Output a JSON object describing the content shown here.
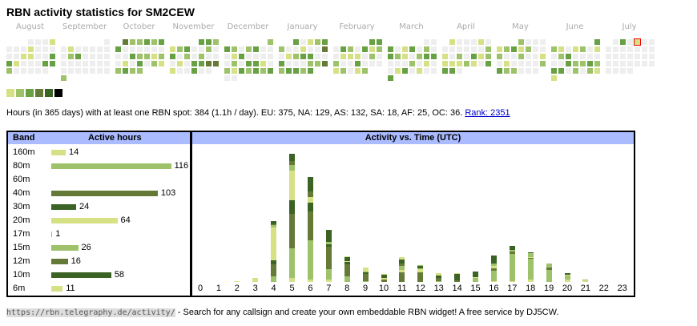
{
  "title": "RBN activity statistics for SM2CEW",
  "palette": {
    "0": "#eeeeee",
    "1": "#d6e085",
    "2": "#9dc26a",
    "3": "#68a044",
    "4": "#667a38",
    "5": "#3a6324",
    "6": "#000000",
    "T": "#d6e085"
  },
  "calendar": [
    {
      "month": "August",
      "rows": [
        "...0001",
        "0001000",
        "0011003",
        "3100033",
        "200000."
      ]
    },
    {
      "month": "September",
      "rows": [
        "......0",
        "0100000",
        "0230000",
        "0000000",
        "0000000",
        "2......"
      ]
    },
    {
      "month": "October",
      "rows": [
        ".422323",
        "3000000",
        "0032212",
        "0103021",
        "2322..."
      ]
    },
    {
      "month": "November",
      "rows": [
        "....332",
        "1230020",
        "3020200",
        "0103344",
        "100300."
      ]
    },
    {
      "month": "December",
      "rows": [
        "......2",
        "3202300",
        "0130000",
        "0203310",
        "2132323",
        "00....."
      ]
    },
    {
      "month": "January",
      "rows": [
        "..30123",
        "2001004",
        "0123300",
        "3000224",
        "23323.."
      ]
    },
    {
      "month": "February",
      "rows": [
        ".....33",
        "0320312",
        "0111020",
        "2003000",
        "12012.."
      ]
    },
    {
      "month": "March",
      "rows": [
        ".....00",
        "3013020",
        "3210233",
        "0002010",
        "0130100",
        "3......"
      ]
    },
    {
      "month": "April",
      "rows": [
        ".100010",
        "0000002",
        "1020312",
        "1112103",
        "330...."
      ]
    },
    {
      "month": "May",
      "rows": [
        "...2000",
        "1231200",
        "2002001",
        "0100002",
        "322000."
      ]
    },
    {
      "month": "June",
      "rows": [
        "......3",
        "2101201",
        "0230000",
        "0032232",
        "3302021",
        "1......"
      ]
    },
    {
      "month": "July",
      "rows": [
        ".030T00",
        "0000000",
        "0000000",
        "0000000",
        "0000..."
      ]
    }
  ],
  "stats": {
    "text": "Hours (in 365 days) with at least one RBN spot: 384 (1.1h / day). EU: 375, NA: 129, AS: 132, SA: 18, AF: 25, OC: 36. ",
    "rank": "Rank: 2351"
  },
  "bands": {
    "header_band": "Band",
    "header_hours": "Active hours",
    "rows": [
      {
        "band": "160m",
        "hours": 14,
        "label": "14",
        "color": "#d6e085"
      },
      {
        "band": "80m",
        "hours": 116,
        "label": "116",
        "color": "#9dc26a"
      },
      {
        "band": "60m",
        "hours": 0,
        "label": "",
        "color": "#68a044"
      },
      {
        "band": "40m",
        "hours": 103,
        "label": "103",
        "color": "#667a38"
      },
      {
        "band": "30m",
        "hours": 24,
        "label": "24",
        "color": "#3a6324"
      },
      {
        "band": "20m",
        "hours": 64,
        "label": "64",
        "color": "#d6e085"
      },
      {
        "band": "17m",
        "hours": 1,
        "label": "1",
        "color": "#9dc26a"
      },
      {
        "band": "15m",
        "hours": 26,
        "label": "26",
        "color": "#9dc26a"
      },
      {
        "band": "12m",
        "hours": 16,
        "label": "16",
        "color": "#667a38"
      },
      {
        "band": "10m",
        "hours": 58,
        "label": "58",
        "color": "#3a6324"
      },
      {
        "band": "6m",
        "hours": 11,
        "label": "11",
        "color": "#d6e085"
      }
    ]
  },
  "chart_data": {
    "type": "bar",
    "stacked": true,
    "title": "Activity vs. Time (UTC)",
    "xlabel": "",
    "ylabel": "",
    "categories": [
      "0",
      "1",
      "2",
      "3",
      "4",
      "5",
      "6",
      "7",
      "8",
      "9",
      "10",
      "11",
      "12",
      "13",
      "14",
      "15",
      "16",
      "17",
      "18",
      "19",
      "20",
      "21",
      "22",
      "23"
    ],
    "segments_note": "each hour: stacked segments [color, relative activity] bottom to top",
    "stacks": [
      [],
      [],
      [
        [
          "1",
          1
        ]
      ],
      [
        [
          "1",
          5
        ]
      ],
      [
        [
          "2",
          7
        ],
        [
          "4",
          15
        ],
        [
          "5",
          5
        ],
        [
          "1",
          41
        ],
        [
          "2",
          3
        ],
        [
          "4",
          1
        ],
        [
          "5",
          4
        ]
      ],
      [
        [
          "1",
          5
        ],
        [
          "2",
          37
        ],
        [
          "4",
          43
        ],
        [
          "5",
          17
        ],
        [
          "1",
          37
        ],
        [
          "2",
          7
        ],
        [
          "4",
          5
        ],
        [
          "5",
          9
        ]
      ],
      [
        [
          "1",
          3
        ],
        [
          "2",
          49
        ],
        [
          "4",
          36
        ],
        [
          "5",
          11
        ],
        [
          "1",
          7
        ],
        [
          "4",
          7
        ],
        [
          "5",
          18
        ]
      ],
      [
        [
          "1",
          3
        ],
        [
          "2",
          13
        ],
        [
          "4",
          28
        ],
        [
          "5",
          3
        ],
        [
          "2",
          3
        ],
        [
          "5",
          15
        ]
      ],
      [
        [
          "2",
          7
        ],
        [
          "4",
          15
        ],
        [
          "5",
          3
        ],
        [
          "1",
          1
        ],
        [
          "5",
          5
        ],
        [
          "1",
          1
        ]
      ],
      [
        [
          "2",
          1
        ],
        [
          "4",
          9
        ],
        [
          "5",
          2
        ],
        [
          "2",
          1
        ],
        [
          "1",
          5
        ]
      ],
      [
        [
          "4",
          3
        ],
        [
          "1",
          2
        ],
        [
          "5",
          4
        ],
        [
          "1",
          1
        ]
      ],
      [
        [
          "4",
          12
        ],
        [
          "1",
          3
        ],
        [
          "2",
          5
        ],
        [
          "4",
          3
        ],
        [
          "5",
          5
        ],
        [
          "1",
          3
        ]
      ],
      [
        [
          "4",
          12
        ],
        [
          "1",
          4
        ],
        [
          "2",
          1
        ],
        [
          "5",
          3
        ],
        [
          "2",
          1
        ]
      ],
      [
        [
          "2",
          1
        ],
        [
          "4",
          4
        ],
        [
          "5",
          3
        ],
        [
          "1",
          3
        ]
      ],
      [
        [
          "4",
          2
        ],
        [
          "5",
          8
        ],
        [
          "1",
          1
        ]
      ],
      [
        [
          "2",
          5
        ],
        [
          "1",
          1
        ],
        [
          "5",
          7
        ]
      ],
      [
        [
          "1",
          1
        ],
        [
          "2",
          13
        ],
        [
          "4",
          3
        ],
        [
          "1",
          3
        ],
        [
          "2",
          3
        ],
        [
          "5",
          10
        ]
      ],
      [
        [
          "1",
          1
        ],
        [
          "2",
          34
        ],
        [
          "4",
          3
        ],
        [
          "2",
          2
        ],
        [
          "5",
          5
        ]
      ],
      [
        [
          "1",
          3
        ],
        [
          "2",
          26
        ],
        [
          "4",
          1
        ],
        [
          "1",
          1
        ],
        [
          "2",
          5
        ],
        [
          "5",
          1
        ]
      ],
      [
        [
          "2",
          15
        ],
        [
          "4",
          3
        ],
        [
          "2",
          5
        ]
      ],
      [
        [
          "1",
          3
        ],
        [
          "2",
          5
        ],
        [
          "1",
          1
        ],
        [
          "5",
          2
        ]
      ],
      [
        [
          "1",
          2
        ],
        [
          "2",
          1
        ]
      ],
      [],
      []
    ]
  },
  "footer": {
    "url": "https://rbn.telegraphy.de/activity/",
    "text": " - Search for any callsign and create your own embeddable RBN widget! A free service by DJ5CW."
  }
}
